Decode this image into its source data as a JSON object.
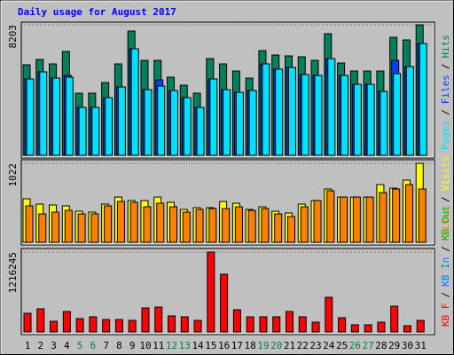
{
  "chart_data": [
    {
      "type": "bar",
      "title": "Daily usage for August 2017",
      "ylim": [
        0,
        8203
      ],
      "yticks": [
        8203
      ],
      "legend_separator": "/",
      "series": [
        {
          "name": "Hits",
          "color": "#00805c",
          "values": [
            5692,
            6026,
            5747,
            6529,
            3906,
            3906,
            4576,
            5747,
            7812,
            5971,
            5971,
            4910,
            4408,
            3906,
            6082,
            5747,
            5301,
            4855,
            6584,
            6305,
            6250,
            6194,
            5971,
            7645,
            5803,
            5301,
            5301,
            5301,
            7421,
            7254,
            8203
          ]
        },
        {
          "name": "Files",
          "color": "#0040ff",
          "values": [
            4799,
            5245,
            4855,
            5022,
            3013,
            3013,
            3627,
            4297,
            6696,
            4129,
            4743,
            4073,
            3627,
            3013,
            4799,
            4129,
            3962,
            4073,
            5747,
            5413,
            5524,
            5078,
            5022,
            6082,
            5022,
            4464,
            4464,
            4018,
            5971,
            5580,
            7031
          ]
        },
        {
          "name": "Pages",
          "color": "#00e0ff",
          "values": [
            4799,
            5245,
            4855,
            4910,
            3013,
            3013,
            3627,
            4297,
            6696,
            4129,
            4352,
            4073,
            3627,
            3013,
            4799,
            4129,
            3962,
            4073,
            5747,
            5413,
            5524,
            5078,
            5022,
            6082,
            5022,
            4464,
            4464,
            4018,
            5134,
            5580,
            7031
          ]
        }
      ]
    },
    {
      "type": "bar",
      "ylim": [
        0,
        1022
      ],
      "yticks": [
        1022
      ],
      "legend_separator": "/",
      "series": [
        {
          "name": "Visits",
          "color": "#ffff00",
          "values": [
            563,
            494,
            482,
            471,
            402,
            390,
            494,
            585,
            540,
            540,
            585,
            517,
            425,
            448,
            448,
            528,
            505,
            425,
            459,
            402,
            379,
            494,
            540,
            689,
            585,
            585,
            585,
            746,
            700,
            804,
            1022
          ]
        },
        {
          "name": "Sites",
          "color": "#ff8000",
          "values": [
            471,
            367,
            390,
            413,
            367,
            367,
            471,
            528,
            517,
            459,
            505,
            459,
            390,
            425,
            436,
            436,
            459,
            413,
            436,
            367,
            333,
            459,
            540,
            666,
            585,
            585,
            585,
            643,
            689,
            746,
            689
          ]
        }
      ]
    },
    {
      "type": "bar",
      "ylim": [
        0,
        1216245
      ],
      "yticks": [
        1216245
      ],
      "legend_separator": "/",
      "categories": [
        "1",
        "2",
        "3",
        "4",
        "5",
        "6",
        "7",
        "8",
        "9",
        "10",
        "11",
        "12",
        "13",
        "14",
        "15",
        "16",
        "17",
        "18",
        "19",
        "20",
        "21",
        "22",
        "23",
        "24",
        "25",
        "26",
        "27",
        "28",
        "29",
        "30",
        "31"
      ],
      "category_colors": [
        "#000000",
        "#000000",
        "#000000",
        "#000000",
        "#008040",
        "#008040",
        "#000000",
        "#000000",
        "#000000",
        "#000000",
        "#000000",
        "#008040",
        "#008040",
        "#000000",
        "#000000",
        "#000000",
        "#000000",
        "#000000",
        "#008040",
        "#008040",
        "#000000",
        "#000000",
        "#000000",
        "#000000",
        "#000000",
        "#008040",
        "#008040",
        "#000000",
        "#000000",
        "#000000",
        "#000000"
      ],
      "series": [
        {
          "name": "KB Out",
          "color": "#00c000",
          "values": [
            null,
            null,
            null,
            null,
            null,
            null,
            null,
            null,
            null,
            null,
            null,
            null,
            null,
            null,
            null,
            null,
            null,
            null,
            null,
            null,
            null,
            null,
            null,
            null,
            null,
            null,
            null,
            null,
            null,
            null,
            null
          ]
        },
        {
          "name": "KB In",
          "color": "#0080ff",
          "values": [
            null,
            null,
            null,
            null,
            null,
            null,
            null,
            null,
            null,
            null,
            null,
            null,
            null,
            null,
            null,
            null,
            null,
            null,
            null,
            null,
            null,
            null,
            null,
            null,
            null,
            null,
            null,
            null,
            null,
            null,
            null
          ]
        },
        {
          "name": "KB F",
          "color": "#ff0000",
          "values": [
            283794,
            351364,
            162168,
            310822,
            202710,
            229738,
            189196,
            189196,
            175682,
            364878,
            378392,
            243252,
            229738,
            175682,
            1216245,
            878410,
            337850,
            229738,
            229738,
            229738,
            310822,
            229738,
            148654,
            527046,
            216224,
            108112,
            108112,
            148654,
            391906,
            94598,
            175682
          ]
        }
      ]
    }
  ]
}
